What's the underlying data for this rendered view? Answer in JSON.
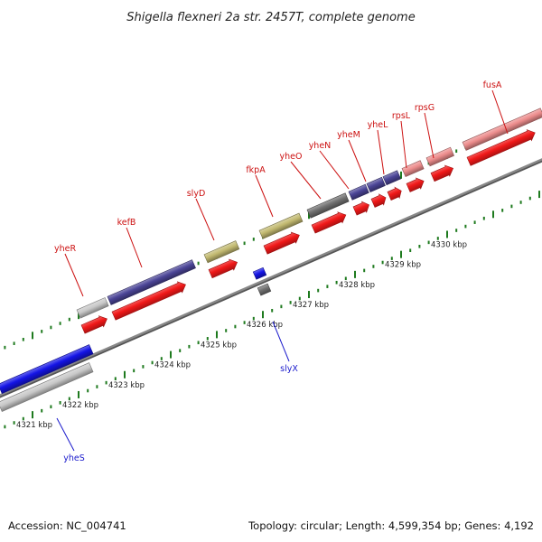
{
  "title": "Shigella flexneri 2a str. 2457T, complete genome",
  "footer": {
    "accession": "Accession: NC_004741",
    "summary": "Topology: circular; Length: 4,599,354 bp; Genes: 4,192"
  },
  "colors": {
    "cds_red": "#f01818",
    "backbone": "#888888",
    "tick_green": "#1e7a1e",
    "label_red": "#cc1111",
    "label_blue": "#1a1acc",
    "navy": "#4a4496",
    "khaki": "#c2b970",
    "gray": "#c8c8c8",
    "dark_gray": "#707070",
    "pink": "#ec8c8c",
    "blue": "#1414e6"
  },
  "ticks": [
    {
      "label": "4321 kbp"
    },
    {
      "label": "4322 kbp"
    },
    {
      "label": "4323 kbp"
    },
    {
      "label": "4324 kbp"
    },
    {
      "label": "4325 kbp"
    },
    {
      "label": "4326 kbp"
    },
    {
      "label": "4327 kbp"
    },
    {
      "label": "4328 kbp"
    },
    {
      "label": "4329 kbp"
    },
    {
      "label": "4330 kbp"
    }
  ],
  "genes": [
    {
      "name": "yheS",
      "strand": "reverse",
      "color": "blue"
    },
    {
      "name": "yheR",
      "strand": "forward",
      "color": "gray"
    },
    {
      "name": "kefB",
      "strand": "forward",
      "color": "navy"
    },
    {
      "name": "slyD",
      "strand": "forward",
      "color": "khaki"
    },
    {
      "name": "slyX",
      "strand": "forward",
      "color": "blue"
    },
    {
      "name": "fkpA",
      "strand": "forward",
      "color": "khaki"
    },
    {
      "name": "yheO",
      "strand": "forward",
      "color": "dark_gray"
    },
    {
      "name": "yheN",
      "strand": "forward",
      "color": "navy"
    },
    {
      "name": "yheM",
      "strand": "forward",
      "color": "navy"
    },
    {
      "name": "yheL",
      "strand": "forward",
      "color": "navy"
    },
    {
      "name": "rpsL",
      "strand": "forward",
      "color": "pink"
    },
    {
      "name": "rpsG",
      "strand": "forward",
      "color": "pink"
    },
    {
      "name": "fusA",
      "strand": "forward",
      "color": "pink"
    }
  ]
}
